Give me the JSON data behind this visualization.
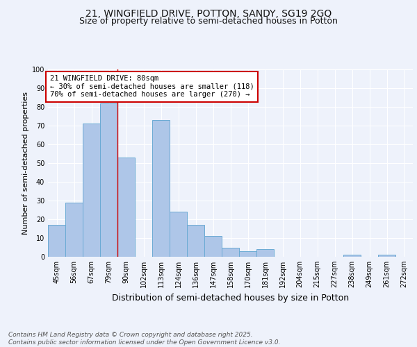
{
  "title_line1": "21, WINGFIELD DRIVE, POTTON, SANDY, SG19 2GQ",
  "title_line2": "Size of property relative to semi-detached houses in Potton",
  "xlabel": "Distribution of semi-detached houses by size in Potton",
  "ylabel": "Number of semi-detached properties",
  "categories": [
    "45sqm",
    "56sqm",
    "67sqm",
    "79sqm",
    "90sqm",
    "102sqm",
    "113sqm",
    "124sqm",
    "136sqm",
    "147sqm",
    "158sqm",
    "170sqm",
    "181sqm",
    "192sqm",
    "204sqm",
    "215sqm",
    "227sqm",
    "238sqm",
    "249sqm",
    "261sqm",
    "272sqm"
  ],
  "values": [
    17,
    29,
    71,
    82,
    53,
    0,
    73,
    24,
    17,
    11,
    5,
    3,
    4,
    0,
    0,
    0,
    0,
    1,
    0,
    1,
    0
  ],
  "bar_color": "#aec6e8",
  "bar_edge_color": "#6aaad4",
  "red_line_x": 3.5,
  "annotation_text": "21 WINGFIELD DRIVE: 80sqm\n← 30% of semi-detached houses are smaller (118)\n70% of semi-detached houses are larger (270) →",
  "annotation_box_color": "#ffffff",
  "annotation_box_edge": "#cc0000",
  "ylim": [
    0,
    100
  ],
  "yticks": [
    0,
    10,
    20,
    30,
    40,
    50,
    60,
    70,
    80,
    90,
    100
  ],
  "background_color": "#eef2fb",
  "footnote": "Contains HM Land Registry data © Crown copyright and database right 2025.\nContains public sector information licensed under the Open Government Licence v3.0.",
  "grid_color": "#ffffff",
  "title_fontsize": 10,
  "subtitle_fontsize": 9,
  "xlabel_fontsize": 9,
  "ylabel_fontsize": 8,
  "tick_fontsize": 7,
  "annotation_fontsize": 7.5,
  "footnote_fontsize": 6.5
}
